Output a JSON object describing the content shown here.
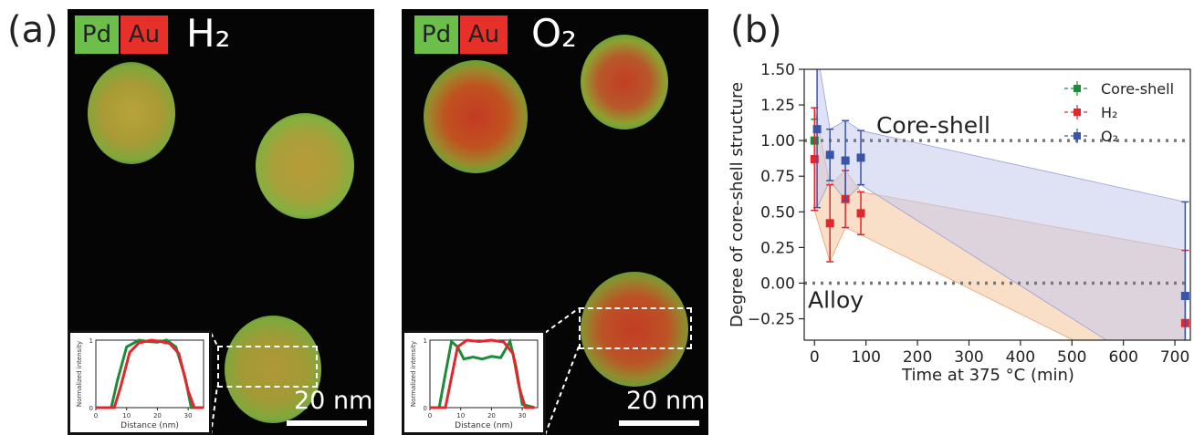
{
  "panels": {
    "a_label": "(a)",
    "b_label": "(b)",
    "left": {
      "badge_pd": "Pd",
      "badge_au": "Au",
      "gas": "H₂",
      "scale": "20 nm",
      "inset": {
        "ylabel": "Normalized intensity",
        "xlabel": "Distance (nm)",
        "xticks": [
          "0",
          "10",
          "20",
          "30"
        ],
        "yticks": [
          "0",
          "1"
        ],
        "pd_profile": [
          [
            0,
            0
          ],
          [
            5,
            0
          ],
          [
            7,
            0.4
          ],
          [
            10,
            0.9
          ],
          [
            14,
            1
          ],
          [
            17,
            0.98
          ],
          [
            20,
            0.97
          ],
          [
            23,
            1
          ],
          [
            26,
            0.9
          ],
          [
            29,
            0.45
          ],
          [
            31,
            0
          ],
          [
            35,
            0
          ]
        ],
        "au_profile": [
          [
            0,
            0
          ],
          [
            6,
            0
          ],
          [
            8,
            0.3
          ],
          [
            11,
            0.82
          ],
          [
            14,
            0.96
          ],
          [
            18,
            1
          ],
          [
            21,
            0.98
          ],
          [
            24,
            0.95
          ],
          [
            27,
            0.8
          ],
          [
            30,
            0.25
          ],
          [
            32,
            0
          ],
          [
            35,
            0
          ]
        ]
      }
    },
    "right": {
      "badge_pd": "Pd",
      "badge_au": "Au",
      "gas": "O₂",
      "scale": "20 nm",
      "inset": {
        "ylabel": "Normalized intensity",
        "xlabel": "Distance (nm)",
        "xticks": [
          "0",
          "10",
          "20",
          "30"
        ],
        "yticks": [
          "0",
          "1"
        ],
        "pd_profile": [
          [
            0,
            0
          ],
          [
            3,
            0
          ],
          [
            5,
            0.5
          ],
          [
            7,
            0.98
          ],
          [
            9,
            0.9
          ],
          [
            11,
            0.72
          ],
          [
            14,
            0.75
          ],
          [
            17,
            0.72
          ],
          [
            20,
            0.76
          ],
          [
            23,
            0.74
          ],
          [
            26,
            0.98
          ],
          [
            28,
            0.6
          ],
          [
            30,
            0.05
          ],
          [
            34,
            0
          ]
        ],
        "au_profile": [
          [
            0,
            0
          ],
          [
            5,
            0
          ],
          [
            7,
            0.45
          ],
          [
            9,
            0.9
          ],
          [
            12,
            1
          ],
          [
            16,
            0.98
          ],
          [
            20,
            1
          ],
          [
            24,
            0.97
          ],
          [
            27,
            0.8
          ],
          [
            29,
            0.3
          ],
          [
            31,
            0
          ],
          [
            34,
            0
          ]
        ]
      }
    }
  },
  "colors": {
    "pd": "#6cbf4a",
    "au": "#e8302a",
    "core_shell": "#1e8a3c",
    "h2": "#e3262c",
    "o2": "#3a55a8",
    "h2_fill": "#f5c49a",
    "o2_fill": "#c5c8ec"
  },
  "chart_data": {
    "type": "scatter",
    "xlabel": "Time at 375 °C (min)",
    "ylabel": "Degree of core-shell structure",
    "xlim": [
      -20,
      730
    ],
    "ylim": [
      -0.4,
      1.5
    ],
    "xticks": [
      0,
      100,
      200,
      300,
      400,
      500,
      600,
      700
    ],
    "yticks": [
      -0.25,
      0.0,
      0.25,
      0.5,
      0.75,
      1.0,
      1.25,
      1.5
    ],
    "ytick_labels": [
      "−0.25",
      "0.00",
      "0.25",
      "0.50",
      "0.75",
      "1.00",
      "1.25",
      "1.50"
    ],
    "grid": false,
    "legend_position": "top-right",
    "reference_lines": [
      {
        "y": 1.0,
        "label": "Core-shell"
      },
      {
        "y": 0.0,
        "label": "Alloy"
      }
    ],
    "series": [
      {
        "name": "Core-shell",
        "x": [
          0
        ],
        "y": [
          1.0
        ],
        "err": [
          0.15
        ]
      },
      {
        "name": "H₂",
        "x": [
          0,
          30,
          60,
          90,
          720
        ],
        "y": [
          0.87,
          0.42,
          0.59,
          0.49,
          -0.28
        ],
        "err": [
          0.36,
          0.27,
          0.2,
          0.15,
          0.51
        ]
      },
      {
        "name": "O₂",
        "x": [
          5,
          30,
          60,
          90,
          720
        ],
        "y": [
          1.08,
          0.9,
          0.86,
          0.88,
          -0.09
        ],
        "err": [
          0.55,
          0.18,
          0.28,
          0.19,
          0.66
        ]
      }
    ],
    "bands": [
      {
        "series": "H₂",
        "x": [
          0,
          30,
          60,
          90,
          720
        ],
        "upper": [
          1.23,
          0.69,
          0.79,
          0.64,
          0.23
        ],
        "lower": [
          0.51,
          0.15,
          0.39,
          0.34,
          -0.79
        ]
      },
      {
        "series": "O₂",
        "x": [
          5,
          30,
          60,
          90,
          720
        ],
        "upper": [
          1.63,
          1.08,
          1.14,
          1.07,
          0.57
        ],
        "lower": [
          0.53,
          0.72,
          0.58,
          0.69,
          -0.75
        ]
      }
    ]
  }
}
